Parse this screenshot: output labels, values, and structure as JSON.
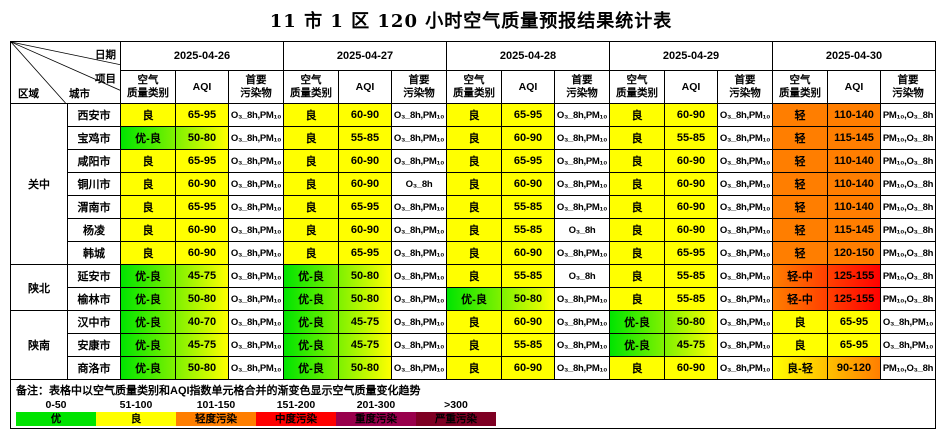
{
  "title": "11 市 1 区 120 小时空气质量预报结果统计表",
  "table": {
    "corner": {
      "date_label": "日期",
      "item_label": "项目",
      "region_label": "区域",
      "city_label": "城市"
    },
    "dates": [
      "2025-04-26",
      "2025-04-27",
      "2025-04-28",
      "2025-04-29",
      "2025-04-30"
    ],
    "sub_columns": [
      "空气\n质量类别",
      "AQI",
      "首要\n污染物"
    ]
  },
  "levels": {
    "良": {
      "start": "#ffff00",
      "end": "#ffff00"
    },
    "优-良": {
      "start": "#00e400",
      "end": "#ffff00"
    },
    "轻": {
      "start": "#ff7e00",
      "end": "#ff7e00"
    },
    "轻-中": {
      "start": "#ff7e00",
      "end": "#ff0000"
    },
    "良-轻": {
      "start": "#ffff00",
      "end": "#ff7e00"
    }
  },
  "regions": [
    {
      "name": "关中",
      "rows": [
        {
          "city": "西安市",
          "days": [
            [
              "良",
              "65-95",
              "O₃_8h,PM₁₀"
            ],
            [
              "良",
              "60-90",
              "O₃_8h,PM₁₀"
            ],
            [
              "良",
              "65-95",
              "O₃_8h,PM₁₀"
            ],
            [
              "良",
              "60-90",
              "O₃_8h,PM₁₀"
            ],
            [
              "轻",
              "110-140",
              "PM₁₀,O₃_8h"
            ]
          ]
        },
        {
          "city": "宝鸡市",
          "days": [
            [
              "优-良",
              "50-80",
              "O₃_8h,PM₁₀"
            ],
            [
              "良",
              "55-85",
              "O₃_8h,PM₁₀"
            ],
            [
              "良",
              "60-90",
              "O₃_8h,PM₁₀"
            ],
            [
              "良",
              "55-85",
              "O₃_8h,PM₁₀"
            ],
            [
              "轻",
              "115-145",
              "PM₁₀,O₃_8h"
            ]
          ]
        },
        {
          "city": "咸阳市",
          "days": [
            [
              "良",
              "65-95",
              "O₃_8h,PM₁₀"
            ],
            [
              "良",
              "60-90",
              "O₃_8h,PM₁₀"
            ],
            [
              "良",
              "65-95",
              "O₃_8h,PM₁₀"
            ],
            [
              "良",
              "60-90",
              "O₃_8h,PM₁₀"
            ],
            [
              "轻",
              "110-140",
              "PM₁₀,O₃_8h"
            ]
          ]
        },
        {
          "city": "铜川市",
          "days": [
            [
              "良",
              "60-90",
              "O₃_8h,PM₁₀"
            ],
            [
              "良",
              "60-90",
              "O₃_8h"
            ],
            [
              "良",
              "60-90",
              "O₃_8h,PM₁₀"
            ],
            [
              "良",
              "60-90",
              "O₃_8h,PM₁₀"
            ],
            [
              "轻",
              "110-140",
              "PM₁₀,O₃_8h"
            ]
          ]
        },
        {
          "city": "渭南市",
          "days": [
            [
              "良",
              "65-95",
              "O₃_8h,PM₁₀"
            ],
            [
              "良",
              "65-95",
              "O₃_8h,PM₁₀"
            ],
            [
              "良",
              "55-85",
              "O₃_8h,PM₁₀"
            ],
            [
              "良",
              "60-90",
              "O₃_8h,PM₁₀"
            ],
            [
              "轻",
              "110-140",
              "PM₁₀,O₃_8h"
            ]
          ]
        },
        {
          "city": "杨凌",
          "days": [
            [
              "良",
              "60-90",
              "O₃_8h,PM₁₀"
            ],
            [
              "良",
              "60-90",
              "O₃_8h,PM₁₀"
            ],
            [
              "良",
              "55-85",
              "O₃_8h"
            ],
            [
              "良",
              "60-90",
              "O₃_8h,PM₁₀"
            ],
            [
              "轻",
              "115-145",
              "PM₁₀,O₃_8h"
            ]
          ]
        },
        {
          "city": "韩城",
          "days": [
            [
              "良",
              "60-90",
              "O₃_8h,PM₁₀"
            ],
            [
              "良",
              "65-95",
              "O₃_8h,PM₁₀"
            ],
            [
              "良",
              "60-90",
              "O₃_8h,PM₁₀"
            ],
            [
              "良",
              "65-95",
              "O₃_8h,PM₁₀"
            ],
            [
              "轻",
              "120-150",
              "PM₁₀,O₃_8h"
            ]
          ]
        }
      ]
    },
    {
      "name": "陕北",
      "rows": [
        {
          "city": "延安市",
          "days": [
            [
              "优-良",
              "45-75",
              "O₃_8h,PM₁₀"
            ],
            [
              "优-良",
              "50-80",
              "O₃_8h,PM₁₀"
            ],
            [
              "良",
              "55-85",
              "O₃_8h"
            ],
            [
              "良",
              "55-85",
              "O₃_8h,PM₁₀"
            ],
            [
              "轻-中",
              "125-155",
              "PM₁₀,O₃_8h"
            ]
          ]
        },
        {
          "city": "榆林市",
          "days": [
            [
              "优-良",
              "50-80",
              "O₃_8h,PM₁₀"
            ],
            [
              "优-良",
              "50-80",
              "O₃_8h,PM₁₀"
            ],
            [
              "优-良",
              "50-80",
              "O₃_8h,PM₁₀"
            ],
            [
              "良",
              "55-85",
              "O₃_8h,PM₁₀"
            ],
            [
              "轻-中",
              "125-155",
              "PM₁₀,O₃_8h"
            ]
          ]
        }
      ]
    },
    {
      "name": "陕南",
      "rows": [
        {
          "city": "汉中市",
          "days": [
            [
              "优-良",
              "40-70",
              "O₃_8h,PM₁₀"
            ],
            [
              "优-良",
              "45-75",
              "O₃_8h,PM₁₀"
            ],
            [
              "良",
              "60-90",
              "O₃_8h,PM₁₀"
            ],
            [
              "优-良",
              "50-80",
              "O₃_8h,PM₁₀"
            ],
            [
              "良",
              "65-95",
              "O₃_8h,PM₁₀"
            ]
          ]
        },
        {
          "city": "安康市",
          "days": [
            [
              "优-良",
              "45-75",
              "O₃_8h,PM₁₀"
            ],
            [
              "优-良",
              "45-75",
              "O₃_8h,PM₁₀"
            ],
            [
              "良",
              "55-85",
              "O₃_8h,PM₁₀"
            ],
            [
              "优-良",
              "45-75",
              "O₃_8h,PM₁₀"
            ],
            [
              "良",
              "65-95",
              "O₃_8h,PM₁₀"
            ]
          ]
        },
        {
          "city": "商洛市",
          "days": [
            [
              "优-良",
              "50-80",
              "O₃_8h,PM₁₀"
            ],
            [
              "优-良",
              "50-80",
              "O₃_8h,PM₁₀"
            ],
            [
              "良",
              "60-90",
              "O₃_8h,PM₁₀"
            ],
            [
              "良",
              "60-90",
              "O₃_8h,PM₁₀"
            ],
            [
              "良-轻",
              "90-120",
              "PM₁₀,O₃_8h"
            ]
          ]
        }
      ]
    }
  ],
  "legend": {
    "note": "备注：表格中以空气质量类别和AQI指数单元格合并的渐变色显示空气质量变化趋势",
    "items": [
      {
        "range": "0-50",
        "label": "优",
        "color": "#00e400"
      },
      {
        "range": "51-100",
        "label": "良",
        "color": "#ffff00"
      },
      {
        "range": "101-150",
        "label": "轻度污染",
        "color": "#ff7e00"
      },
      {
        "range": "151-200",
        "label": "中度污染",
        "color": "#ff0000"
      },
      {
        "range": "201-300",
        "label": "重度污染",
        "color": "#99004c"
      },
      {
        "range": ">300",
        "label": "严重污染",
        "color": "#7e0023"
      }
    ]
  }
}
